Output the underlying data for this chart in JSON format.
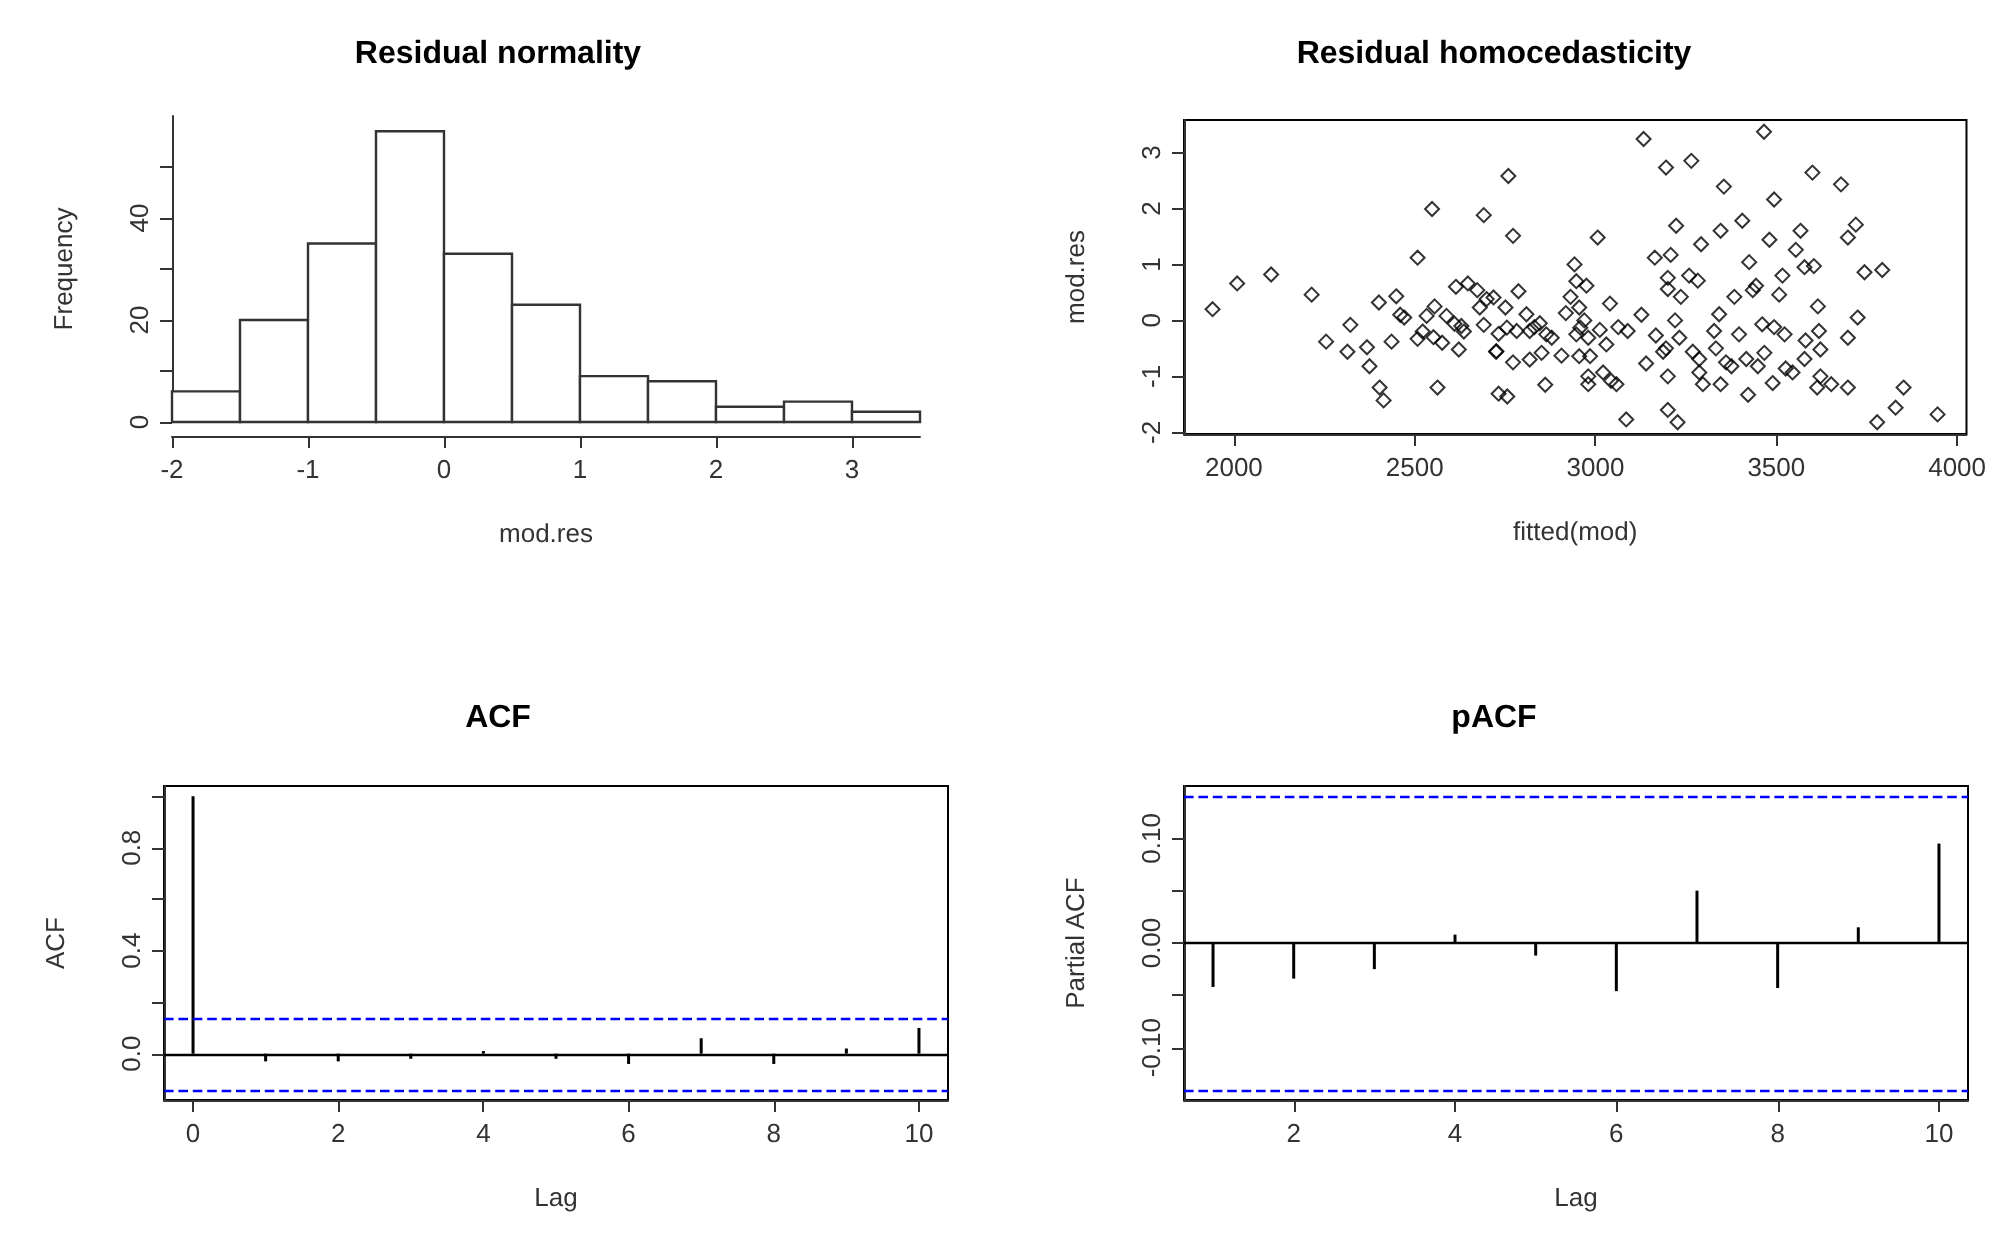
{
  "chart_data": [
    {
      "type": "histogram",
      "title": "Residual normality",
      "xlabel": "mod.res",
      "ylabel": "Frequency",
      "bins": [
        -2,
        -1.5,
        -1,
        -0.5,
        0,
        0.5,
        1,
        1.5,
        2,
        2.5,
        3,
        3.5
      ],
      "values": [
        6,
        20,
        35,
        57,
        33,
        23,
        9,
        8,
        3,
        4,
        2
      ],
      "color": "#ffffff",
      "xlim": [
        -2,
        3.5
      ],
      "xticks": [
        -2,
        -1,
        0,
        1,
        2,
        3
      ],
      "ylim": [
        0,
        60
      ],
      "yticks": [
        0,
        {
          "value": 10,
          "label": null
        },
        20,
        {
          "value": 30,
          "label": null
        },
        40,
        {
          "value": 50,
          "label": null
        }
      ],
      "grid": false
    },
    {
      "type": "scatter",
      "title": "Residual homocedasticity",
      "xlabel": "fitted(mod)",
      "ylabel": "mod.res",
      "marker": "diamond",
      "color": "#000000",
      "xlim": [
        1862,
        4026
      ],
      "xticks": [
        2000,
        2500,
        3000,
        3500,
        4000
      ],
      "ylim": [
        -2.03,
        3.58
      ],
      "yticks": [
        -2,
        -1,
        0,
        1,
        2,
        3
      ],
      "grid": false,
      "x": [
        1941,
        2009,
        2103,
        2215,
        2255,
        2314,
        2322,
        2368,
        2375,
        2401,
        2403,
        2414,
        2436,
        2449,
        2460,
        2471,
        2508,
        2508,
        2522,
        2533,
        2548,
        2552,
        2555,
        2563,
        2576,
        2588,
        2610,
        2614,
        2622,
        2629,
        2636,
        2647,
        2673,
        2680,
        2691,
        2691,
        2699,
        2725,
        2732,
        2732,
        2759,
        2772,
        2718,
        2751,
        2787,
        2755,
        2782,
        2809,
        2818,
        2831,
        2846,
        2864,
        2879,
        2726,
        2772,
        2818,
        2851,
        2906,
        2756,
        2861,
        2942,
        2947,
        2975,
        2931,
        2918,
        2955,
        2958,
        2947,
        2969,
        2980,
        2955,
        2985,
        2980,
        2980,
        3006,
        3012,
        3030,
        3040,
        3021,
        3043,
        3058,
        3063,
        3089,
        3127,
        3085,
        3140,
        3133,
        3164,
        3167,
        3195,
        3200,
        3208,
        3200,
        3223,
        3220,
        3236,
        3265,
        3259,
        3283,
        3292,
        3187,
        3195,
        3200,
        3200,
        3227,
        3232,
        3269,
        3287,
        3287,
        3297,
        3328,
        3342,
        3346,
        3355,
        3361,
        3376,
        3346,
        3333,
        3406,
        3397,
        3384,
        3425,
        3435,
        3444,
        3417,
        3422,
        3449,
        3461,
        3467,
        3466,
        3481,
        3494,
        3494,
        3490,
        3508,
        3517,
        3523,
        3526,
        3545,
        3554,
        3567,
        3578,
        3581,
        3578,
        3600,
        3604,
        3615,
        3618,
        3622,
        3622,
        3613,
        3652,
        3679,
        3698,
        3698,
        3698,
        3720,
        3725,
        3744,
        3793,
        3779,
        3830,
        3852,
        3946
      ],
      "values": [
        0.2,
        0.66,
        0.82,
        0.46,
        -0.38,
        -0.56,
        -0.08,
        -0.48,
        -0.82,
        0.32,
        -1.2,
        -1.43,
        -0.38,
        0.43,
        0.1,
        0.05,
        1.12,
        -0.33,
        -0.2,
        0.08,
        1.99,
        -0.3,
        0.25,
        -1.2,
        -0.4,
        0.08,
        -0.06,
        0.6,
        -0.52,
        -0.1,
        -0.2,
        0.66,
        0.54,
        0.23,
        1.88,
        -0.08,
        0.38,
        -0.56,
        -0.24,
        -1.31,
        2.58,
        1.51,
        0.41,
        0.23,
        0.52,
        -0.13,
        -0.19,
        0.11,
        -0.19,
        -0.12,
        -0.05,
        -0.25,
        -0.31,
        -0.55,
        -0.75,
        -0.7,
        -0.58,
        -0.63,
        -1.36,
        -1.15,
        1.0,
        0.7,
        0.62,
        0.42,
        0.13,
        0.23,
        -0.13,
        -0.25,
        0.0,
        -0.31,
        -0.64,
        -0.64,
        -1.0,
        -1.14,
        1.48,
        -0.17,
        -0.43,
        0.3,
        -0.93,
        -1.08,
        -1.14,
        -0.12,
        -0.19,
        0.1,
        -1.77,
        -0.77,
        3.24,
        1.12,
        -0.27,
        2.73,
        0.76,
        1.17,
        0.56,
        1.69,
        0.0,
        0.42,
        2.85,
        0.8,
        0.71,
        1.36,
        -0.56,
        -0.5,
        -1.0,
        -1.6,
        -1.82,
        -0.31,
        -0.56,
        -0.93,
        -0.69,
        -1.14,
        -0.19,
        0.11,
        1.6,
        2.39,
        -0.75,
        -0.82,
        -1.14,
        -0.5,
        1.78,
        -0.25,
        0.42,
        1.04,
        0.54,
        0.62,
        -0.69,
        -1.33,
        -0.82,
        -0.07,
        -0.58,
        3.37,
        1.44,
        2.16,
        -0.12,
        -1.12,
        0.46,
        0.8,
        -0.25,
        -0.86,
        -0.93,
        1.26,
        1.6,
        0.95,
        -0.36,
        -0.69,
        2.64,
        0.97,
        0.25,
        -0.19,
        -0.52,
        -1.0,
        -1.2,
        -1.14,
        2.43,
        1.48,
        -0.31,
        -1.2,
        1.71,
        0.05,
        0.86,
        0.9,
        -1.82,
        -1.56,
        -1.2,
        -1.68
      ]
    },
    {
      "type": "bar",
      "title": "ACF",
      "xlabel": "Lag",
      "ylabel": "ACF",
      "color": "#000000",
      "x": [
        0,
        1,
        2,
        3,
        4,
        5,
        6,
        7,
        8,
        9,
        10
      ],
      "values": [
        1,
        -0.03,
        -0.03,
        -0.02,
        0.01,
        -0.02,
        -0.04,
        0.06,
        -0.04,
        0.02,
        0.1
      ],
      "xlim": [
        -0.4,
        10.4
      ],
      "xticks": [
        0,
        2,
        4,
        6,
        8,
        10
      ],
      "ylim": [
        -0.18,
        1.04
      ],
      "yticks": [
        {
          "value": 0,
          "label": "0.0"
        },
        {
          "value": 0.2,
          "label": null
        },
        {
          "value": 0.4,
          "label": "0.4"
        },
        {
          "value": 0.6,
          "label": null
        },
        {
          "value": 0.8,
          "label": "0.8"
        },
        {
          "value": 1,
          "label": null
        }
      ],
      "grid": false,
      "ref_lines": [
        {
          "axis": "y",
          "value": 0,
          "color": "#000000",
          "line_style": "solid"
        },
        {
          "axis": "y",
          "value": 0.14,
          "color": "#0000ff",
          "line_style": "dashed"
        },
        {
          "axis": "y",
          "value": -0.14,
          "color": "#0000ff",
          "line_style": "dashed"
        }
      ]
    },
    {
      "type": "bar",
      "title": "pACF",
      "xlabel": "Lag",
      "ylabel": "Partial ACF",
      "color": "#000000",
      "x": [
        1,
        2,
        3,
        4,
        5,
        6,
        7,
        8,
        9,
        10
      ],
      "values": [
        -0.042,
        -0.034,
        -0.025,
        0.008,
        -0.012,
        -0.046,
        0.05,
        -0.043,
        0.015,
        0.095
      ],
      "xlim": [
        0.64,
        10.36
      ],
      "xticks": [
        2,
        4,
        6,
        8,
        10
      ],
      "ylim": [
        -0.15,
        0.15
      ],
      "yticks": [
        {
          "value": -0.1,
          "label": "-0.10"
        },
        {
          "value": -0.05,
          "label": null
        },
        {
          "value": 0,
          "label": "0.00"
        },
        {
          "value": 0.05,
          "label": null
        },
        {
          "value": 0.1,
          "label": "0.10"
        }
      ],
      "grid": false,
      "ref_lines": [
        {
          "axis": "y",
          "value": 0,
          "color": "#000000",
          "line_style": "solid"
        },
        {
          "axis": "y",
          "value": 0.14,
          "color": "#0000ff",
          "line_style": "dashed"
        },
        {
          "axis": "y",
          "value": -0.14,
          "color": "#0000ff",
          "line_style": "dashed"
        }
      ]
    }
  ]
}
